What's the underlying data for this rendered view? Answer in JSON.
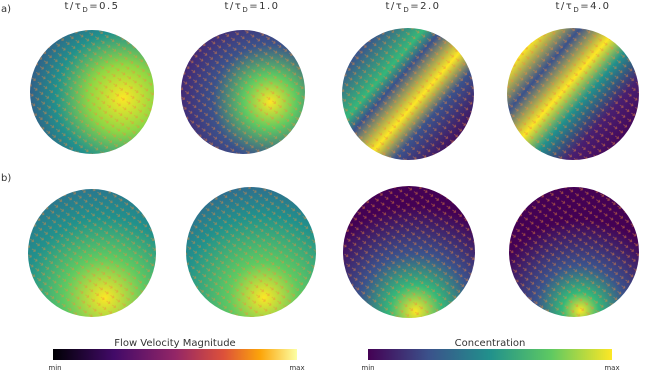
{
  "columns": [
    {
      "lead": "t/τ",
      "sub": "D",
      "tail": "=0.5"
    },
    {
      "lead": "t/τ",
      "sub": "D",
      "tail": "=1.0"
    },
    {
      "lead": "t/τ",
      "sub": "D",
      "tail": "=2.0"
    },
    {
      "lead": "t/τ",
      "sub": "D",
      "tail": "=4.0"
    }
  ],
  "rows": [
    "a)",
    "b)"
  ],
  "colorbars": [
    {
      "title": "Flow Velocity Magnitude",
      "min": "min",
      "max": "max"
    },
    {
      "title": "Concentration",
      "min": "min",
      "max": "max"
    }
  ]
}
